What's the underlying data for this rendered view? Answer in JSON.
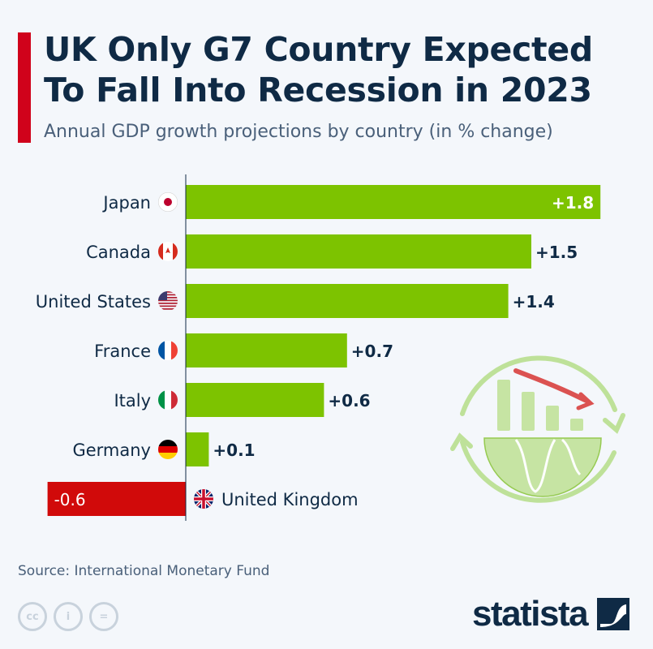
{
  "title_line1": "UK Only G7 Country Expected",
  "title_line2": "To Fall Into Recession in 2023",
  "subtitle": "Annual GDP growth projections by country (in % change)",
  "source": "Source: International Monetary Fund",
  "logo": "statista",
  "license_icons": [
    "cc-icon",
    "attribution-icon",
    "no-derivatives-icon"
  ],
  "colors": {
    "positive": "#7dc300",
    "negative": "#d10a0a",
    "title": "#0f2a45",
    "accent": "#d0021b"
  },
  "chart_data": {
    "type": "bar",
    "orientation": "horizontal",
    "categories": [
      "Japan",
      "Canada",
      "United States",
      "France",
      "Italy",
      "Germany",
      "United Kingdom"
    ],
    "values": [
      1.8,
      1.5,
      1.4,
      0.7,
      0.6,
      0.1,
      -0.6
    ],
    "labels": [
      "+1.8",
      "+1.5",
      "+1.4",
      "+0.7",
      "+0.6",
      "+0.1",
      "-0.6"
    ],
    "xlim": [
      -0.6,
      1.8
    ],
    "grid": false,
    "legend": "none"
  }
}
